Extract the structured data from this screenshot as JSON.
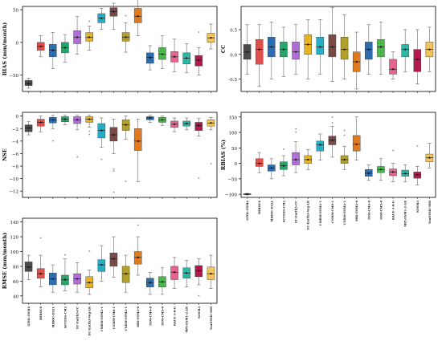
{
  "colors": {
    "frame": "#000000",
    "whisker": "#666666",
    "median": "#222222",
    "mean_marker": "#111111",
    "outlier": "#555555"
  },
  "models": [
    {
      "name": "GFDL-ESM4",
      "color": "#4a4a4a"
    },
    {
      "name": "MIROC6",
      "color": "#e0504a"
    },
    {
      "name": "MIROC-ES2L",
      "color": "#2a6fb5"
    },
    {
      "name": "ACCESS-CM2",
      "color": "#23a76b"
    },
    {
      "name": "EC-Earth3-CC",
      "color": "#b06fd6"
    },
    {
      "name": "EC-Earth3-Veg-LR",
      "color": "#e8b322"
    },
    {
      "name": "CMRM-ESM2-1",
      "color": "#26aec6"
    },
    {
      "name": "CNRM-CM6-1",
      "color": "#7a4a46"
    },
    {
      "name": "CNRM-ESM2-1",
      "color": "#b3a02a"
    },
    {
      "name": "MRI-ESM2-0",
      "color": "#e07a1f"
    },
    {
      "name": "INM-CM4-8",
      "color": "#2e6cab"
    },
    {
      "name": "INM-CM5-0",
      "color": "#4bb84e"
    },
    {
      "name": "KACE-1-0-G",
      "color": "#e6648f"
    },
    {
      "name": "MPI-ESM1-2-LR",
      "color": "#2fb7a5"
    },
    {
      "name": "NESM3",
      "color": "#b3184e"
    },
    {
      "name": "NorESM2-MM",
      "color": "#f2c45a"
    }
  ],
  "chart_data": [
    {
      "type": "box",
      "panel": "bias",
      "ylabel": "BIAS (mm/month)",
      "ylim": [
        -75,
        55
      ],
      "yticks": [
        -50,
        0,
        50
      ],
      "series": [
        {
          "q1": -66,
          "med": -63,
          "q3": -58,
          "lo": -70,
          "hi": -55,
          "mean": -63,
          "out": []
        },
        {
          "q1": -12,
          "med": -6,
          "q3": 0,
          "lo": -22,
          "hi": 10,
          "mean": -6,
          "out": []
        },
        {
          "q1": -22,
          "med": -12,
          "q3": -3,
          "lo": -40,
          "hi": 15,
          "mean": -12,
          "out": []
        },
        {
          "q1": -16,
          "med": -8,
          "q3": 0,
          "lo": -30,
          "hi": 12,
          "mean": -8,
          "out": []
        },
        {
          "q1": -2,
          "med": 8,
          "q3": 18,
          "lo": -18,
          "hi": 40,
          "mean": 8,
          "out": []
        },
        {
          "q1": 2,
          "med": 8,
          "q3": 15,
          "lo": -12,
          "hi": 25,
          "mean": 8,
          "out": [
            32
          ]
        },
        {
          "q1": 30,
          "med": 37,
          "q3": 44,
          "lo": 20,
          "hi": 52,
          "mean": 37,
          "out": []
        },
        {
          "q1": 40,
          "med": 47,
          "q3": 53,
          "lo": 20,
          "hi": 60,
          "mean": 47,
          "out": []
        },
        {
          "q1": 2,
          "med": 8,
          "q3": 15,
          "lo": -15,
          "hi": 30,
          "mean": 8,
          "out": [
            40
          ]
        },
        {
          "q1": 30,
          "med": 40,
          "q3": 52,
          "lo": 10,
          "hi": 68,
          "mean": 40,
          "out": []
        },
        {
          "q1": -32,
          "med": -23,
          "q3": -16,
          "lo": -42,
          "hi": -5,
          "mean": -23,
          "out": []
        },
        {
          "q1": -26,
          "med": -18,
          "q3": -8,
          "lo": -40,
          "hi": 10,
          "mean": -18,
          "out": []
        },
        {
          "q1": -30,
          "med": -22,
          "q3": -14,
          "lo": -45,
          "hi": 5,
          "mean": -22,
          "out": []
        },
        {
          "q1": -33,
          "med": -24,
          "q3": -16,
          "lo": -46,
          "hi": -2,
          "mean": -24,
          "out": []
        },
        {
          "q1": -36,
          "med": -27,
          "q3": -20,
          "lo": -50,
          "hi": -8,
          "mean": -27,
          "out": [
            15
          ]
        },
        {
          "q1": 0,
          "med": 7,
          "q3": 14,
          "lo": -10,
          "hi": 28,
          "mean": 7,
          "out": []
        }
      ]
    },
    {
      "type": "box",
      "panel": "nse",
      "ylabel": "NSE",
      "ylim": [
        -13,
        0.6
      ],
      "yticks": [
        -12,
        -10,
        -8,
        -6,
        -4,
        -2,
        0
      ],
      "series": [
        {
          "q1": -2.5,
          "med": -1.9,
          "q3": -1.4,
          "lo": -3.0,
          "hi": -0.9,
          "mean": -1.9,
          "out": []
        },
        {
          "q1": -1.6,
          "med": -1.0,
          "q3": -0.5,
          "lo": -2.5,
          "hi": 0.0,
          "mean": -1.0,
          "out": []
        },
        {
          "q1": -1.1,
          "med": -0.6,
          "q3": -0.2,
          "lo": -2.0,
          "hi": 0.1,
          "mean": -0.6,
          "out": [
            -4.0
          ]
        },
        {
          "q1": -0.9,
          "med": -0.5,
          "q3": -0.1,
          "lo": -1.4,
          "hi": 0.1,
          "mean": -0.5,
          "out": []
        },
        {
          "q1": -1.2,
          "med": -0.6,
          "q3": -0.1,
          "lo": -2.2,
          "hi": 0.1,
          "mean": -0.6,
          "out": [
            -6.6
          ]
        },
        {
          "q1": -1.0,
          "med": -0.5,
          "q3": -0.1,
          "lo": -1.8,
          "hi": 0.1,
          "mean": -0.5,
          "out": [
            -2.5,
            -3.0
          ]
        },
        {
          "q1": -3.5,
          "med": -2.3,
          "q3": -1.2,
          "lo": -5.0,
          "hi": -0.3,
          "mean": -2.3,
          "out": [
            -7.0
          ]
        },
        {
          "q1": -4.0,
          "med": -3.0,
          "q3": -1.8,
          "lo": -6.0,
          "hi": -0.5,
          "mean": -3.0,
          "out": [
            -8.5,
            -8.8,
            -12.2
          ]
        },
        {
          "q1": -2.3,
          "med": -1.4,
          "q3": -0.6,
          "lo": -3.7,
          "hi": 0.0,
          "mean": -1.4,
          "out": [
            -10.5
          ]
        },
        {
          "q1": -5.5,
          "med": -4.0,
          "q3": -2.0,
          "lo": -10.5,
          "hi": -0.5,
          "mean": -4.0,
          "out": []
        },
        {
          "q1": -0.6,
          "med": -0.3,
          "q3": -0.1,
          "lo": -1.0,
          "hi": 0.1,
          "mean": -0.3,
          "out": []
        },
        {
          "q1": -1.0,
          "med": -0.6,
          "q3": -0.2,
          "lo": -1.5,
          "hi": 0.0,
          "mean": -0.6,
          "out": []
        },
        {
          "q1": -1.8,
          "med": -1.3,
          "q3": -0.8,
          "lo": -2.5,
          "hi": -0.3,
          "mean": -1.3,
          "out": []
        },
        {
          "q1": -1.6,
          "med": -1.2,
          "q3": -0.8,
          "lo": -2.2,
          "hi": -0.3,
          "mean": -1.2,
          "out": []
        },
        {
          "q1": -2.3,
          "med": -1.5,
          "q3": -1.0,
          "lo": -3.2,
          "hi": -0.4,
          "mean": -1.5,
          "out": [
            -10.0
          ]
        },
        {
          "q1": -1.6,
          "med": -1.1,
          "q3": -0.6,
          "lo": -2.2,
          "hi": -0.2,
          "mean": -1.1,
          "out": [
            -7.7
          ]
        }
      ]
    },
    {
      "type": "box",
      "panel": "rmse",
      "ylabel": "RMSE (mm/month)",
      "ylim": [
        30,
        145
      ],
      "yticks": [
        40,
        60,
        80,
        100,
        120,
        140
      ],
      "series": [
        {
          "q1": 73,
          "med": 79,
          "q3": 86,
          "lo": 62,
          "hi": 95,
          "mean": 79,
          "out": []
        },
        {
          "q1": 64,
          "med": 70,
          "q3": 77,
          "lo": 52,
          "hi": 95,
          "mean": 70,
          "out": [
            118
          ]
        },
        {
          "q1": 55,
          "med": 63,
          "q3": 71,
          "lo": 45,
          "hi": 82,
          "mean": 63,
          "out": []
        },
        {
          "q1": 55,
          "med": 62,
          "q3": 68,
          "lo": 47,
          "hi": 90,
          "mean": 62,
          "out": [
            95
          ]
        },
        {
          "q1": 56,
          "med": 63,
          "q3": 70,
          "lo": 45,
          "hi": 85,
          "mean": 63,
          "out": []
        },
        {
          "q1": 51,
          "med": 58,
          "q3": 66,
          "lo": 42,
          "hi": 75,
          "mean": 58,
          "out": [
            100
          ]
        },
        {
          "q1": 73,
          "med": 82,
          "q3": 89,
          "lo": 60,
          "hi": 108,
          "mean": 82,
          "out": []
        },
        {
          "q1": 80,
          "med": 90,
          "q3": 98,
          "lo": 65,
          "hi": 120,
          "mean": 90,
          "out": []
        },
        {
          "q1": 58,
          "med": 70,
          "q3": 80,
          "lo": 45,
          "hi": 95,
          "mean": 70,
          "out": []
        },
        {
          "q1": 83,
          "med": 92,
          "q3": 100,
          "lo": 68,
          "hi": 120,
          "mean": 92,
          "out": [
            135
          ]
        },
        {
          "q1": 52,
          "med": 58,
          "q3": 64,
          "lo": 42,
          "hi": 72,
          "mean": 58,
          "out": []
        },
        {
          "q1": 52,
          "med": 59,
          "q3": 66,
          "lo": 42,
          "hi": 78,
          "mean": 59,
          "out": []
        },
        {
          "q1": 62,
          "med": 72,
          "q3": 80,
          "lo": 50,
          "hi": 92,
          "mean": 72,
          "out": []
        },
        {
          "q1": 64,
          "med": 71,
          "q3": 78,
          "lo": 52,
          "hi": 88,
          "mean": 71,
          "out": []
        },
        {
          "q1": 66,
          "med": 74,
          "q3": 81,
          "lo": 55,
          "hi": 90,
          "mean": 74,
          "out": [
            40
          ]
        },
        {
          "q1": 62,
          "med": 70,
          "q3": 79,
          "lo": 50,
          "hi": 95,
          "mean": 70,
          "out": []
        }
      ]
    },
    {
      "type": "box",
      "panel": "cc",
      "ylabel": "CC",
      "ylim": [
        -0.75,
        0.97
      ],
      "yticks": [
        -0.5,
        0.0,
        0.5
      ],
      "series": [
        {
          "q1": -0.1,
          "med": 0.05,
          "q3": 0.2,
          "lo": -0.4,
          "hi": 0.6,
          "mean": 0.05,
          "out": []
        },
        {
          "q1": -0.2,
          "med": 0.1,
          "q3": 0.3,
          "lo": -0.65,
          "hi": 0.6,
          "mean": 0.1,
          "out": []
        },
        {
          "q1": -0.05,
          "med": 0.15,
          "q3": 0.35,
          "lo": -0.5,
          "hi": 0.65,
          "mean": 0.15,
          "out": []
        },
        {
          "q1": -0.05,
          "med": 0.1,
          "q3": 0.25,
          "lo": -0.45,
          "hi": 0.55,
          "mean": 0.1,
          "out": []
        },
        {
          "q1": -0.1,
          "med": 0.05,
          "q3": 0.25,
          "lo": -0.4,
          "hi": 0.6,
          "mean": 0.05,
          "out": []
        },
        {
          "q1": 0.0,
          "med": 0.2,
          "q3": 0.4,
          "lo": -0.5,
          "hi": 0.7,
          "mean": 0.2,
          "out": []
        },
        {
          "q1": 0.0,
          "med": 0.15,
          "q3": 0.35,
          "lo": -0.4,
          "hi": 0.7,
          "mean": 0.15,
          "out": []
        },
        {
          "q1": -0.05,
          "med": 0.15,
          "q3": 0.4,
          "lo": -0.55,
          "hi": 0.95,
          "mean": 0.15,
          "out": []
        },
        {
          "q1": -0.1,
          "med": 0.1,
          "q3": 0.35,
          "lo": -0.5,
          "hi": 0.8,
          "mean": 0.1,
          "out": []
        },
        {
          "q1": -0.35,
          "med": -0.15,
          "q3": 0.05,
          "lo": -0.7,
          "hi": 0.45,
          "mean": -0.15,
          "out": []
        },
        {
          "q1": -0.1,
          "med": 0.1,
          "q3": 0.25,
          "lo": -0.4,
          "hi": 0.6,
          "mean": 0.1,
          "out": []
        },
        {
          "q1": -0.05,
          "med": 0.15,
          "q3": 0.3,
          "lo": -0.4,
          "hi": 0.65,
          "mean": 0.15,
          "out": []
        },
        {
          "q1": -0.4,
          "med": -0.3,
          "q3": -0.1,
          "lo": -0.5,
          "hi": 0.05,
          "mean": -0.3,
          "out": []
        },
        {
          "q1": -0.05,
          "med": 0.1,
          "q3": 0.2,
          "lo": -0.35,
          "hi": 0.5,
          "mean": 0.1,
          "out": []
        },
        {
          "q1": -0.35,
          "med": -0.1,
          "q3": 0.1,
          "lo": -0.6,
          "hi": 0.5,
          "mean": -0.1,
          "out": []
        },
        {
          "q1": -0.05,
          "med": 0.1,
          "q3": 0.25,
          "lo": -0.35,
          "hi": 0.55,
          "mean": 0.1,
          "out": []
        }
      ]
    },
    {
      "type": "box",
      "panel": "rbias",
      "ylabel": "RBIAS (%)",
      "ylim": [
        -110,
        165
      ],
      "yticks": [
        -100,
        -50,
        0,
        50,
        100,
        150
      ],
      "series": [
        {
          "q1": -101,
          "med": -100,
          "q3": -98,
          "lo": -102,
          "hi": -97,
          "mean": -100,
          "out": []
        },
        {
          "q1": -10,
          "med": 0,
          "q3": 15,
          "lo": -30,
          "hi": 35,
          "mean": 0,
          "out": []
        },
        {
          "q1": -25,
          "med": -15,
          "q3": -5,
          "lo": -50,
          "hi": 15,
          "mean": -15,
          "out": []
        },
        {
          "q1": -20,
          "med": -8,
          "q3": 5,
          "lo": -40,
          "hi": 25,
          "mean": -8,
          "out": [
            45
          ]
        },
        {
          "q1": -5,
          "med": 12,
          "q3": 35,
          "lo": -30,
          "hi": 70,
          "mean": 12,
          "out": [
            100,
            110
          ]
        },
        {
          "q1": 0,
          "med": 12,
          "q3": 25,
          "lo": -20,
          "hi": 45,
          "mean": 12,
          "out": []
        },
        {
          "q1": 40,
          "med": 60,
          "q3": 72,
          "lo": 10,
          "hi": 95,
          "mean": 60,
          "out": []
        },
        {
          "q1": 60,
          "med": 75,
          "q3": 88,
          "lo": 20,
          "hi": 120,
          "mean": 75,
          "out": [
            130,
            148
          ]
        },
        {
          "q1": 0,
          "med": 12,
          "q3": 25,
          "lo": -20,
          "hi": 55,
          "mean": 12,
          "out": [
            90,
            105
          ]
        },
        {
          "q1": 40,
          "med": 62,
          "q3": 90,
          "lo": 10,
          "hi": 150,
          "mean": 62,
          "out": []
        },
        {
          "q1": -42,
          "med": -32,
          "q3": -20,
          "lo": -55,
          "hi": -5,
          "mean": -32,
          "out": []
        },
        {
          "q1": -30,
          "med": -20,
          "q3": -10,
          "lo": -55,
          "hi": 15,
          "mean": -20,
          "out": []
        },
        {
          "q1": -40,
          "med": -28,
          "q3": -18,
          "lo": -60,
          "hi": 0,
          "mean": -28,
          "out": [
            40
          ]
        },
        {
          "q1": -42,
          "med": -33,
          "q3": -22,
          "lo": -60,
          "hi": -5,
          "mean": -33,
          "out": []
        },
        {
          "q1": -48,
          "med": -37,
          "q3": -28,
          "lo": -70,
          "hi": -10,
          "mean": -37,
          "out": [
            55
          ]
        },
        {
          "q1": 5,
          "med": 18,
          "q3": 30,
          "lo": -15,
          "hi": 65,
          "mean": 18,
          "out": []
        }
      ]
    }
  ]
}
